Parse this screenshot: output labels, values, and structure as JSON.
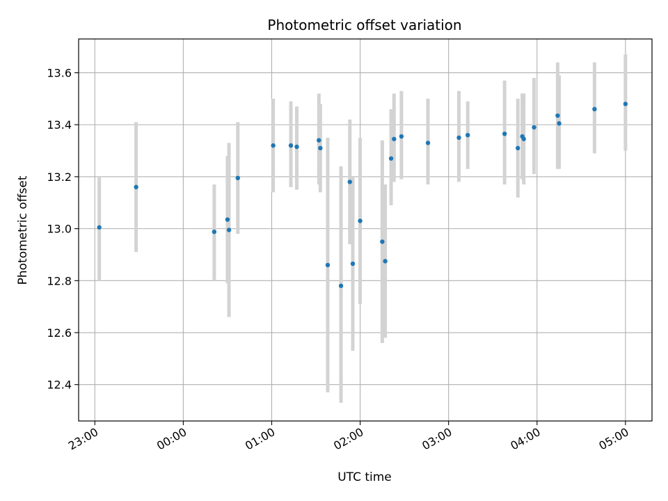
{
  "chart_data": {
    "type": "scatter",
    "title": "Photometric offset variation",
    "xlabel": "UTC time",
    "ylabel": "Photometric offset",
    "grid": true,
    "x_ticks": [
      "23:00",
      "00:00",
      "01:00",
      "02:00",
      "03:00",
      "04:00",
      "05:00"
    ],
    "y_ticks": [
      "12.4",
      "12.6",
      "12.8",
      "13.0",
      "13.2",
      "13.4",
      "13.6"
    ],
    "xlim": [
      "22:49",
      "05:18"
    ],
    "ylim": [
      12.26,
      13.73
    ],
    "point_color": "#1f77b4",
    "errorbar_color": "#d3d3d3",
    "points": [
      {
        "x": "23:03",
        "y": 13.005,
        "lo": 12.8,
        "hi": 13.2
      },
      {
        "x": "23:28",
        "y": 13.16,
        "lo": 12.91,
        "hi": 13.41
      },
      {
        "x": "00:21",
        "y": 12.988,
        "lo": 12.8,
        "hi": 13.17
      },
      {
        "x": "00:30",
        "y": 13.035,
        "lo": 12.79,
        "hi": 13.28
      },
      {
        "x": "00:31",
        "y": 12.995,
        "lo": 12.66,
        "hi": 13.33
      },
      {
        "x": "00:37",
        "y": 13.195,
        "lo": 12.98,
        "hi": 13.41
      },
      {
        "x": "01:01",
        "y": 13.32,
        "lo": 13.14,
        "hi": 13.5
      },
      {
        "x": "01:13",
        "y": 13.32,
        "lo": 13.16,
        "hi": 13.49
      },
      {
        "x": "01:17",
        "y": 13.315,
        "lo": 13.15,
        "hi": 13.47
      },
      {
        "x": "01:32",
        "y": 13.34,
        "lo": 13.17,
        "hi": 13.52
      },
      {
        "x": "01:33",
        "y": 13.31,
        "lo": 13.14,
        "hi": 13.48
      },
      {
        "x": "01:38",
        "y": 12.86,
        "lo": 12.37,
        "hi": 13.35
      },
      {
        "x": "01:47",
        "y": 12.78,
        "lo": 12.33,
        "hi": 13.24
      },
      {
        "x": "01:53",
        "y": 13.18,
        "lo": 12.94,
        "hi": 13.42
      },
      {
        "x": "01:55",
        "y": 12.865,
        "lo": 12.53,
        "hi": 13.2
      },
      {
        "x": "02:00",
        "y": 13.03,
        "lo": 12.71,
        "hi": 13.35
      },
      {
        "x": "02:15",
        "y": 12.95,
        "lo": 12.56,
        "hi": 13.34
      },
      {
        "x": "02:17",
        "y": 12.875,
        "lo": 12.58,
        "hi": 13.17
      },
      {
        "x": "02:21",
        "y": 13.27,
        "lo": 13.09,
        "hi": 13.46
      },
      {
        "x": "02:23",
        "y": 13.345,
        "lo": 13.18,
        "hi": 13.52
      },
      {
        "x": "02:28",
        "y": 13.355,
        "lo": 13.19,
        "hi": 13.53
      },
      {
        "x": "02:46",
        "y": 13.33,
        "lo": 13.17,
        "hi": 13.5
      },
      {
        "x": "03:07",
        "y": 13.35,
        "lo": 13.18,
        "hi": 13.53
      },
      {
        "x": "03:13",
        "y": 13.36,
        "lo": 13.23,
        "hi": 13.49
      },
      {
        "x": "03:38",
        "y": 13.365,
        "lo": 13.17,
        "hi": 13.57
      },
      {
        "x": "03:47",
        "y": 13.31,
        "lo": 13.12,
        "hi": 13.5
      },
      {
        "x": "03:50",
        "y": 13.355,
        "lo": 13.19,
        "hi": 13.52
      },
      {
        "x": "03:51",
        "y": 13.345,
        "lo": 13.17,
        "hi": 13.52
      },
      {
        "x": "03:58",
        "y": 13.39,
        "lo": 13.21,
        "hi": 13.58
      },
      {
        "x": "04:14",
        "y": 13.435,
        "lo": 13.23,
        "hi": 13.64
      },
      {
        "x": "04:15",
        "y": 13.405,
        "lo": 13.23,
        "hi": 13.59
      },
      {
        "x": "04:39",
        "y": 13.46,
        "lo": 13.29,
        "hi": 13.64
      },
      {
        "x": "05:00",
        "y": 13.48,
        "lo": 13.3,
        "hi": 13.67
      }
    ]
  }
}
